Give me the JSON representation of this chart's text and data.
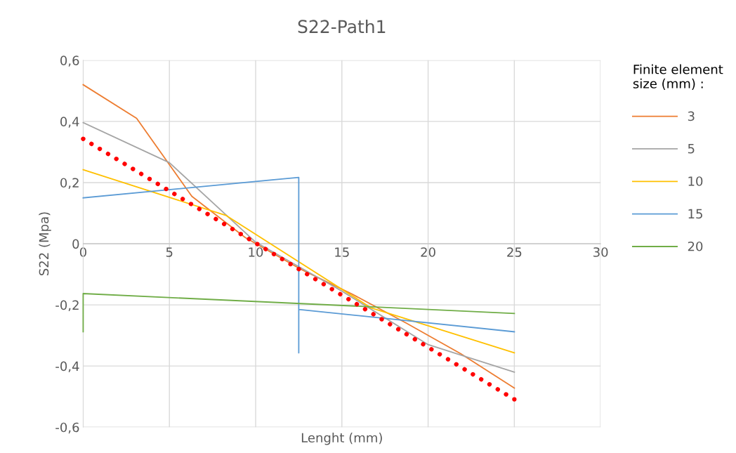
{
  "chart_data": {
    "type": "line",
    "title": "S22-Path1",
    "xlabel": "Lenght (mm)",
    "ylabel": "S22 (Mpa)",
    "legend_title": "Finite element\nsize (mm) :",
    "xlim": [
      0,
      30
    ],
    "xticks": [
      0,
      5,
      10,
      15,
      20,
      25,
      30
    ],
    "ylim": [
      -0.6,
      0.6
    ],
    "yticks": [
      {
        "value": -0.6,
        "label": "-0,6"
      },
      {
        "value": -0.4,
        "label": "-0,4"
      },
      {
        "value": -0.2,
        "label": "-0,2"
      },
      0,
      {
        "value": 0.2,
        "label": "0,2"
      },
      {
        "value": 0.4,
        "label": "0,4"
      },
      {
        "value": 0.6,
        "label": "0,6"
      }
    ],
    "grid": true,
    "legend": "right",
    "series": [
      {
        "name": "3",
        "color": "#ed7d31",
        "x": [
          0,
          3.1,
          6.3,
          9.4,
          12.5,
          15.6,
          18.75,
          21.9,
          25
        ],
        "values": [
          0.52,
          0.41,
          0.155,
          0.02,
          -0.08,
          -0.165,
          -0.26,
          -0.36,
          -0.472
        ]
      },
      {
        "name": "5",
        "color": "#a5a5a5",
        "x": [
          0,
          5,
          10,
          15,
          20,
          25
        ],
        "values": [
          0.396,
          0.265,
          0.005,
          -0.155,
          -0.33,
          -0.42
        ]
      },
      {
        "name": "10",
        "color": "#ffc000",
        "x": [
          0,
          8.3,
          16.7,
          25
        ],
        "values": [
          0.242,
          0.092,
          -0.21,
          -0.357
        ]
      },
      {
        "name": "15",
        "color": "#5b9bd5",
        "x": [
          0,
          12.5,
          12.5,
          12.5,
          25
        ],
        "values": [
          0.15,
          0.217,
          -0.357,
          -0.215,
          -0.288
        ]
      },
      {
        "name": "20",
        "color": "#70ad47",
        "x": [
          0,
          0,
          25
        ],
        "values": [
          -0.288,
          -0.163,
          -0.228
        ]
      },
      {
        "color": "#ff0000",
        "line_style": "dotted",
        "x": [
          0,
          25
        ],
        "values": [
          0.343,
          -0.509
        ]
      }
    ]
  }
}
